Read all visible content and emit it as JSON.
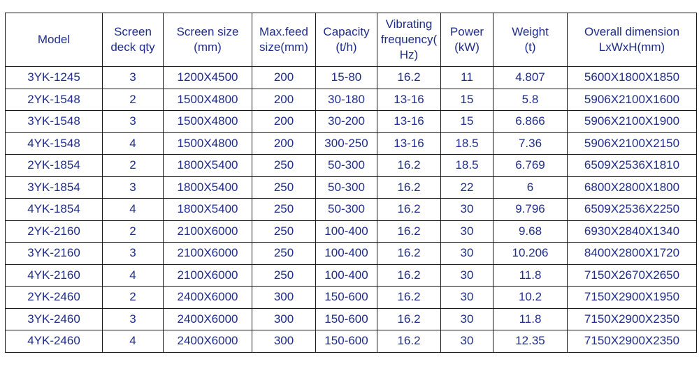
{
  "table": {
    "headers": [
      "Model",
      "Screen\ndeck qty",
      "Screen size\n(mm)",
      "Max.feed\nsize(mm)",
      "Capacity\n(t/h)",
      "Vibrating\nfrequency(\nHz)",
      "Power\n(kW)",
      "Weight\n(t)",
      "Overall dimension\nLxWxH(mm)"
    ],
    "rows": [
      [
        "3YK-1245",
        "3",
        "1200X4500",
        "200",
        "15-80",
        "16.2",
        "11",
        "4.807",
        "5600X1800X1850"
      ],
      [
        "2YK-1548",
        "2",
        "1500X4800",
        "200",
        "30-180",
        "13-16",
        "15",
        "5.8",
        "5906X2100X1600"
      ],
      [
        "3YK-1548",
        "3",
        "1500X4800",
        "200",
        "30-200",
        "13-16",
        "15",
        "6.866",
        "5906X2100X1900"
      ],
      [
        "4YK-1548",
        "4",
        "1500X4800",
        "200",
        "300-250",
        "13-16",
        "18.5",
        "7.36",
        "5906X2100X2150"
      ],
      [
        "2YK-1854",
        "2",
        "1800X5400",
        "250",
        "50-300",
        "16.2",
        "18.5",
        "6.769",
        "6509X2536X1810"
      ],
      [
        "3YK-1854",
        "3",
        "1800X5400",
        "250",
        "50-300",
        "16.2",
        "22",
        "6",
        "6800X2800X1800"
      ],
      [
        "4YK-1854",
        "4",
        "1800X5400",
        "250",
        "50-300",
        "16.2",
        "30",
        "9.796",
        "6509X2536X2250"
      ],
      [
        "2YK-2160",
        "2",
        "2100X6000",
        "250",
        "100-400",
        "16.2",
        "30",
        "9.68",
        "6930X2840X1340"
      ],
      [
        "3YK-2160",
        "3",
        "2100X6000",
        "250",
        "100-400",
        "16.2",
        "30",
        "10.206",
        "8400X2800X1720"
      ],
      [
        "4YK-2160",
        "4",
        "2100X6000",
        "250",
        "100-400",
        "16.2",
        "30",
        "11.8",
        "7150X2670X2650"
      ],
      [
        "2YK-2460",
        "2",
        "2400X6000",
        "300",
        "150-600",
        "16.2",
        "30",
        "10.2",
        "7150X2900X1950"
      ],
      [
        "3YK-2460",
        "3",
        "2400X6000",
        "300",
        "150-600",
        "16.2",
        "30",
        "11.8",
        "7150X2900X2350"
      ],
      [
        "4YK-2460",
        "4",
        "2400X6000",
        "300",
        "150-600",
        "16.2",
        "30",
        "12.35",
        "7150X2900X2350"
      ]
    ]
  },
  "colors": {
    "text": "#1f2d8a",
    "border": "#1a1a1a",
    "background": "#ffffff"
  }
}
